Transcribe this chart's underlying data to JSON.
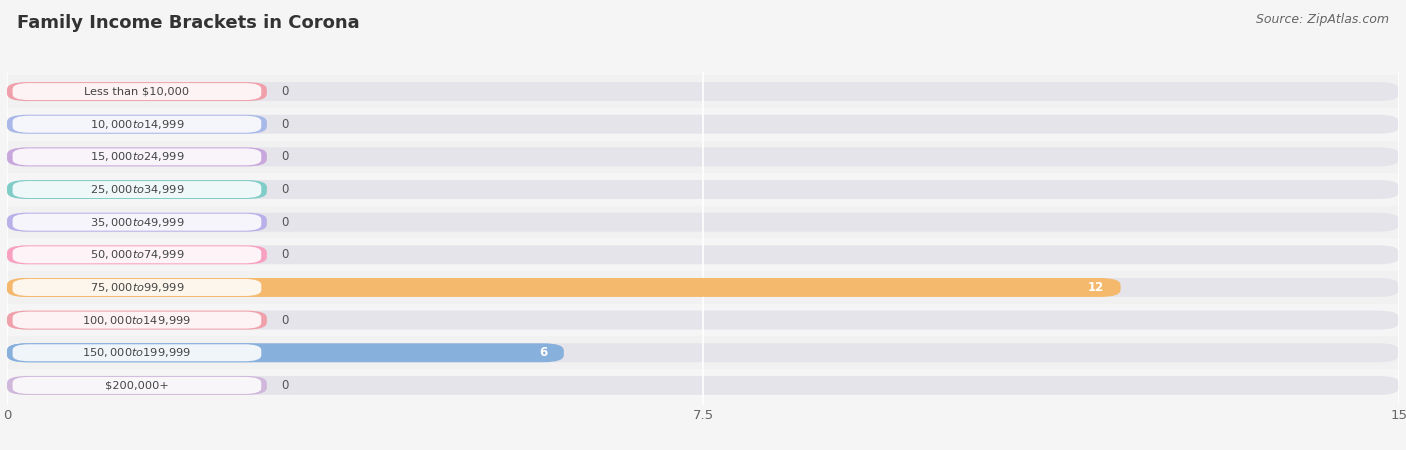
{
  "title": "Family Income Brackets in Corona",
  "source": "Source: ZipAtlas.com",
  "categories": [
    "Less than $10,000",
    "$10,000 to $14,999",
    "$15,000 to $24,999",
    "$25,000 to $34,999",
    "$35,000 to $49,999",
    "$50,000 to $74,999",
    "$75,000 to $99,999",
    "$100,000 to $149,999",
    "$150,000 to $199,999",
    "$200,000+"
  ],
  "values": [
    0,
    0,
    0,
    0,
    0,
    0,
    12,
    0,
    6,
    0
  ],
  "bar_colors": [
    "#f0a0aa",
    "#a8b8e8",
    "#c8a8dc",
    "#80ccc8",
    "#b8b0e8",
    "#f8a0c0",
    "#f5b96e",
    "#f0a0aa",
    "#88b0dc",
    "#d0b8dc"
  ],
  "xlim": [
    0,
    15
  ],
  "xticks": [
    0,
    7.5,
    15
  ],
  "background_color": "#f5f5f5",
  "bar_bg_color": "#e4e4ea",
  "title_fontsize": 13,
  "source_fontsize": 9,
  "label_bar_width": 2.8
}
